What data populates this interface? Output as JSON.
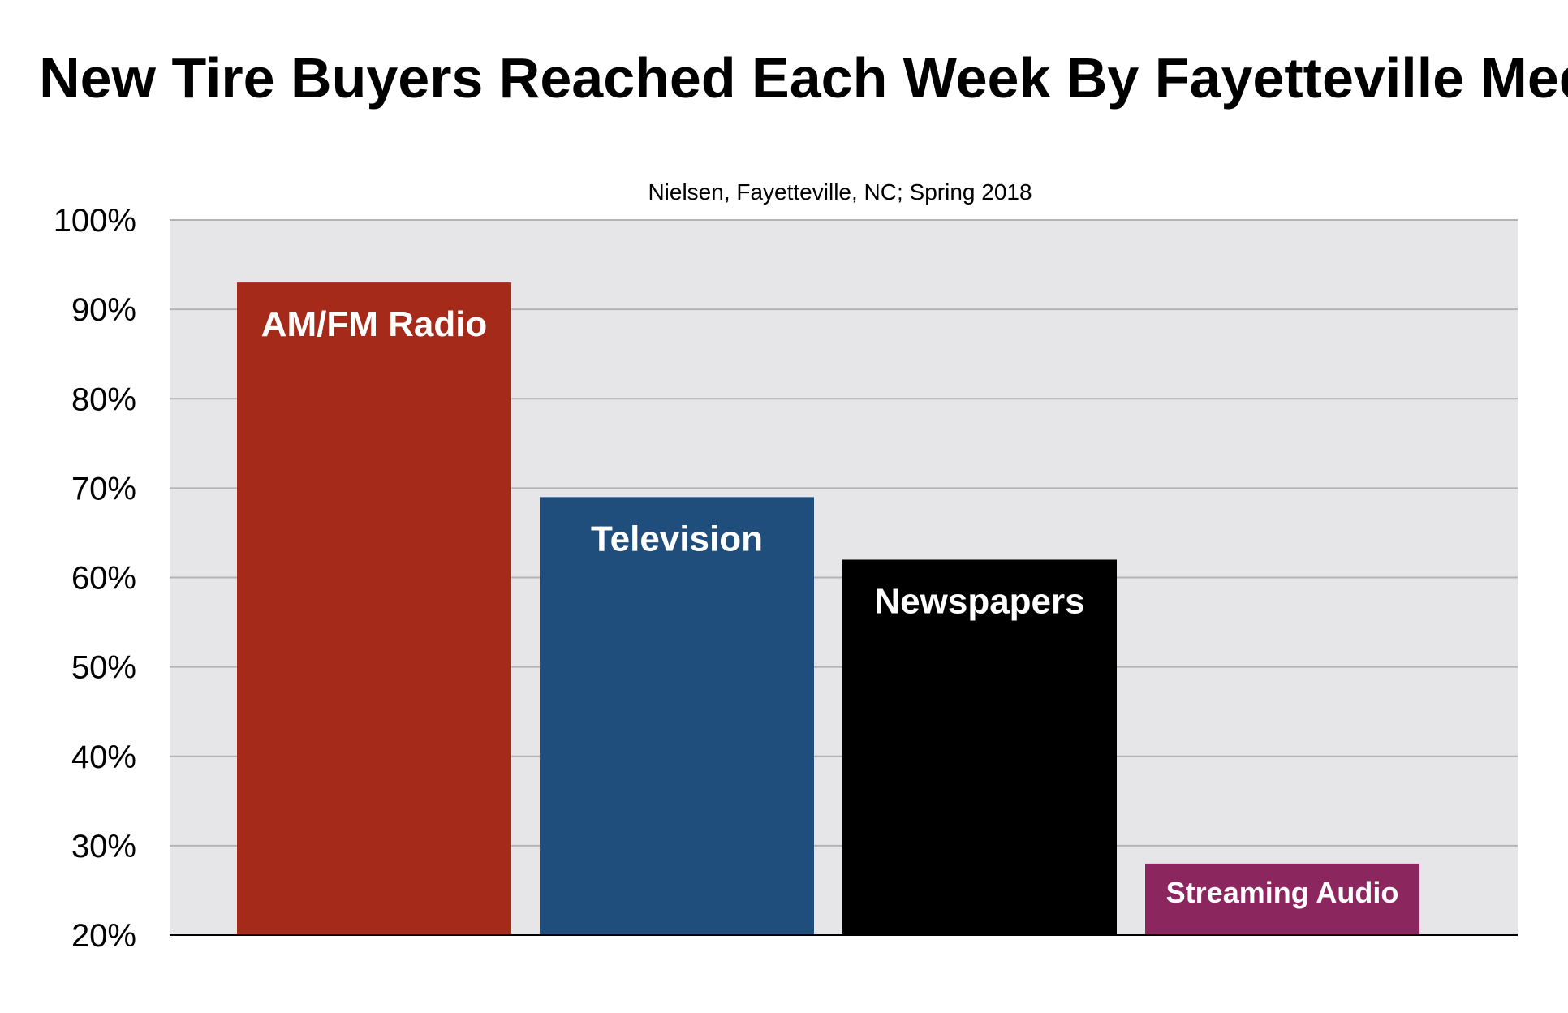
{
  "chart_data": {
    "type": "bar",
    "title": "New Tire Buyers Reached Each Week By Fayetteville Media",
    "subtitle": "Nielsen, Fayetteville, NC; Spring 2018",
    "categories": [
      "AM/FM Radio",
      "Television",
      "Newspapers",
      "Streaming Audio"
    ],
    "values": [
      93,
      69,
      62,
      28
    ],
    "colors": [
      "#a52a1a",
      "#1f4e7d",
      "#000000",
      "#8b275e"
    ],
    "ylim": [
      20,
      100
    ],
    "y_ticks": [
      "20%",
      "30%",
      "40%",
      "50%",
      "60%",
      "70%",
      "80%",
      "90%",
      "100%"
    ],
    "grid": true,
    "legend": "none",
    "labels_inside_bars": true,
    "xlabel": "",
    "ylabel": ""
  }
}
